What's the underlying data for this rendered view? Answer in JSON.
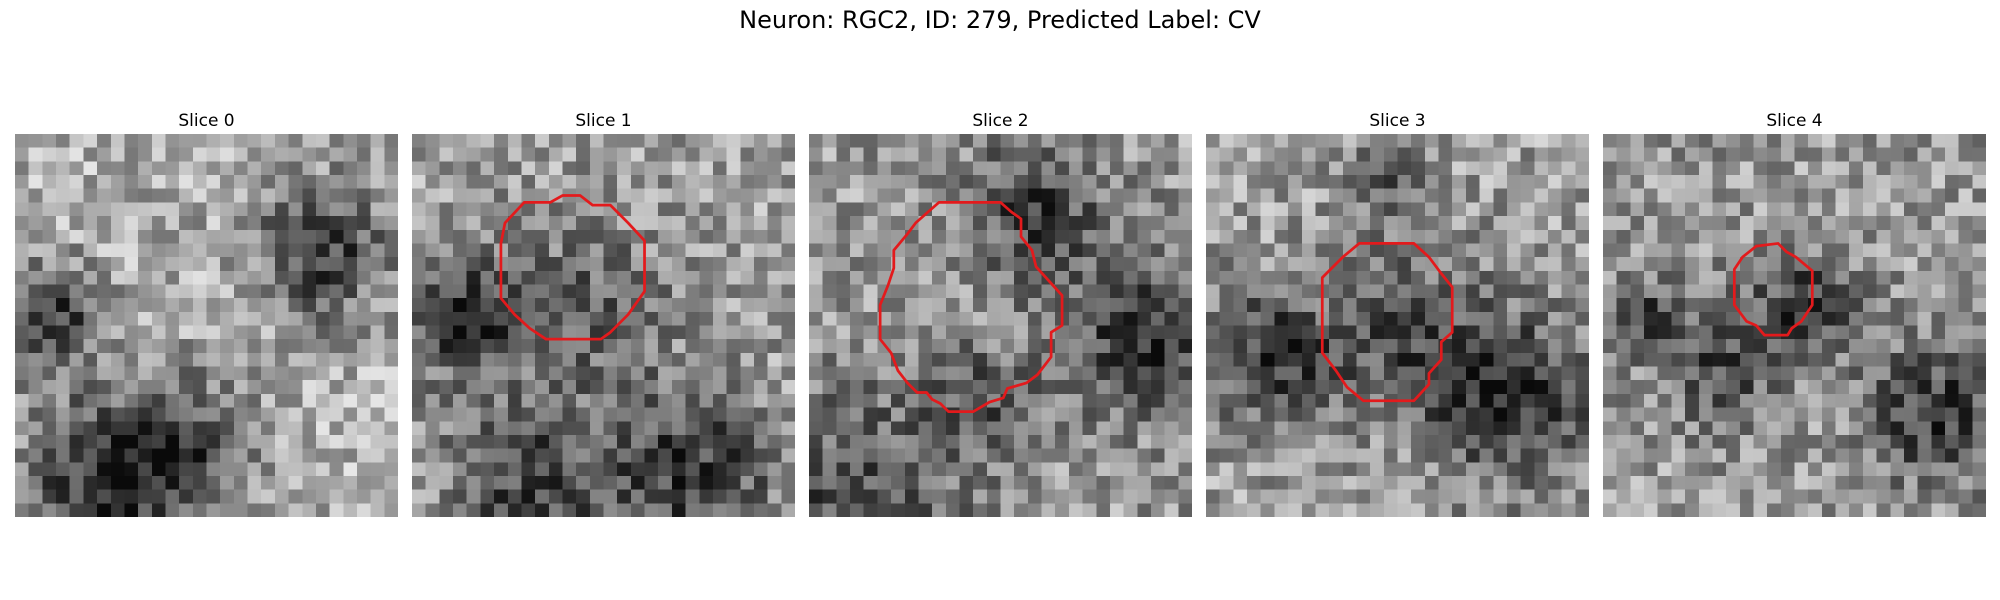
{
  "figure": {
    "title": "Neuron: RGC2, ID: 279, Predicted Label: CV",
    "contour_color": "#e31a1c"
  },
  "panels": [
    {
      "title": "Slice 0",
      "seed": 11,
      "darkness": "top-right and bottom-left dark patches",
      "has_contour": false
    },
    {
      "title": "Slice 1",
      "seed": 23,
      "has_contour": true
    },
    {
      "title": "Slice 2",
      "seed": 37,
      "has_contour": true
    },
    {
      "title": "Slice 3",
      "seed": 51,
      "has_contour": true
    },
    {
      "title": "Slice 4",
      "seed": 67,
      "has_contour": true
    }
  ]
}
